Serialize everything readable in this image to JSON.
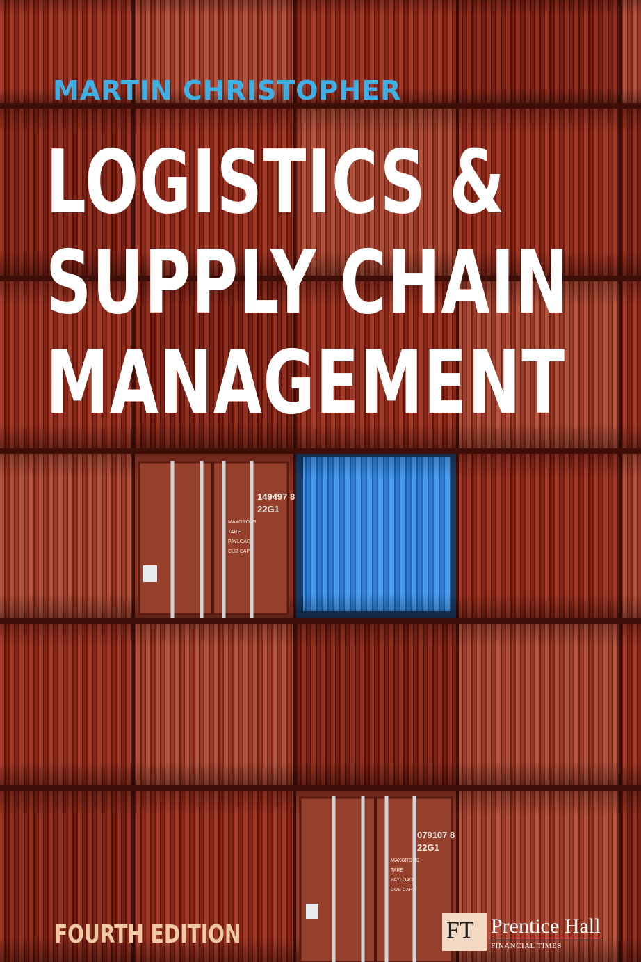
{
  "author": "MARTIN CHRISTOPHER",
  "title_lines": [
    "LOGISTICS &",
    "SUPPLY CHAIN",
    "MANAGEMENT"
  ],
  "edition": "FOURTH EDITION",
  "publisher": {
    "logo_text": "FT",
    "name": "Prentice Hall",
    "subtitle": "FINANCIAL TIMES"
  },
  "container_codes": {
    "door_top": [
      "149497 8",
      "22G1"
    ],
    "door_bottom": [
      "079107 8",
      "22G1"
    ]
  },
  "colors": {
    "container_red": "#8f2a1c",
    "container_blue": "#3b8fe0",
    "author": "#3fb0e6",
    "edition": "#f0c9a6"
  }
}
